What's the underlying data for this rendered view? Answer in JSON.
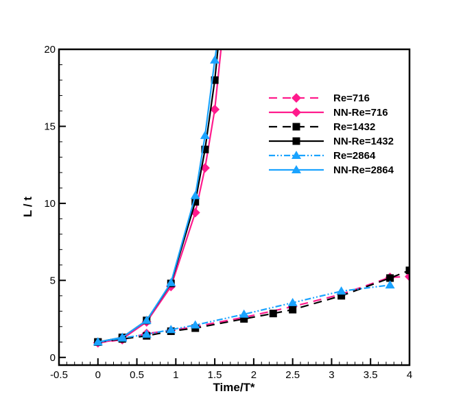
{
  "chart_data": {
    "type": "line",
    "title": "",
    "xlabel": "Time/T*",
    "ylabel": "L / t",
    "xlim": [
      -0.5,
      4
    ],
    "ylim": [
      -0.5,
      20
    ],
    "xticks": [
      -0.5,
      0,
      0.5,
      1,
      1.5,
      2,
      2.5,
      3,
      3.5,
      4
    ],
    "xtick_labels": [
      "-0.5",
      "0",
      "0.5",
      "1",
      "1.5",
      "2",
      "2.5",
      "3",
      "3.5",
      "4"
    ],
    "yticks": [
      0,
      5,
      10,
      15,
      20
    ],
    "ytick_labels": [
      "0",
      "5",
      "10",
      "15",
      "20"
    ],
    "grid": false,
    "legend_position": "top-right",
    "series": [
      {
        "name": "Re=716",
        "color": "#ff1a8c",
        "dash": "dashed",
        "marker": "diamond",
        "x": [
          0,
          0.3125,
          0.625,
          0.9375,
          1.25,
          1.875,
          2.5,
          3.125,
          3.75,
          4
        ],
        "y": [
          0.95,
          1.15,
          1.55,
          1.75,
          2.0,
          2.6,
          3.3,
          4.1,
          5.2,
          5.25
        ]
      },
      {
        "name": "NN-Re=716",
        "color": "#ff1a8c",
        "dash": "solid",
        "marker": "diamond",
        "x": [
          0,
          0.3125,
          0.625,
          0.9375,
          1.25,
          1.375,
          1.5,
          1.58
        ],
        "y": [
          0.95,
          1.2,
          2.3,
          4.6,
          9.4,
          12.3,
          16.1,
          20
        ]
      },
      {
        "name": "Re=1432",
        "color": "#000000",
        "dash": "dashed",
        "marker": "square",
        "x": [
          0,
          0.3125,
          0.625,
          0.9375,
          1.25,
          1.875,
          2.25,
          2.5,
          3.125,
          3.75,
          4
        ],
        "y": [
          1.0,
          1.2,
          1.4,
          1.7,
          1.9,
          2.5,
          2.85,
          3.1,
          4.0,
          5.15,
          5.65
        ]
      },
      {
        "name": "NN-Re=1432",
        "color": "#000000",
        "dash": "solid",
        "marker": "square",
        "x": [
          0,
          0.3125,
          0.625,
          0.9375,
          1.25,
          1.375,
          1.5,
          1.54
        ],
        "y": [
          1.0,
          1.3,
          2.4,
          4.8,
          10.1,
          13.5,
          18.0,
          20
        ]
      },
      {
        "name": "Re=2864",
        "color": "#1aa3ff",
        "dash": "dashdotdot",
        "marker": "triangle",
        "x": [
          0,
          0.3125,
          0.625,
          0.9375,
          1.25,
          1.875,
          2.5,
          3.125,
          3.75
        ],
        "y": [
          1.0,
          1.25,
          1.5,
          1.8,
          2.1,
          2.8,
          3.55,
          4.3,
          4.7
        ]
      },
      {
        "name": "NN-Re=2864",
        "color": "#1aa3ff",
        "dash": "solid",
        "marker": "triangle",
        "x": [
          0,
          0.3125,
          0.625,
          0.9375,
          1.25,
          1.375,
          1.5,
          1.52
        ],
        "y": [
          1.0,
          1.3,
          2.4,
          4.85,
          10.5,
          14.4,
          19.3,
          20
        ]
      }
    ]
  }
}
